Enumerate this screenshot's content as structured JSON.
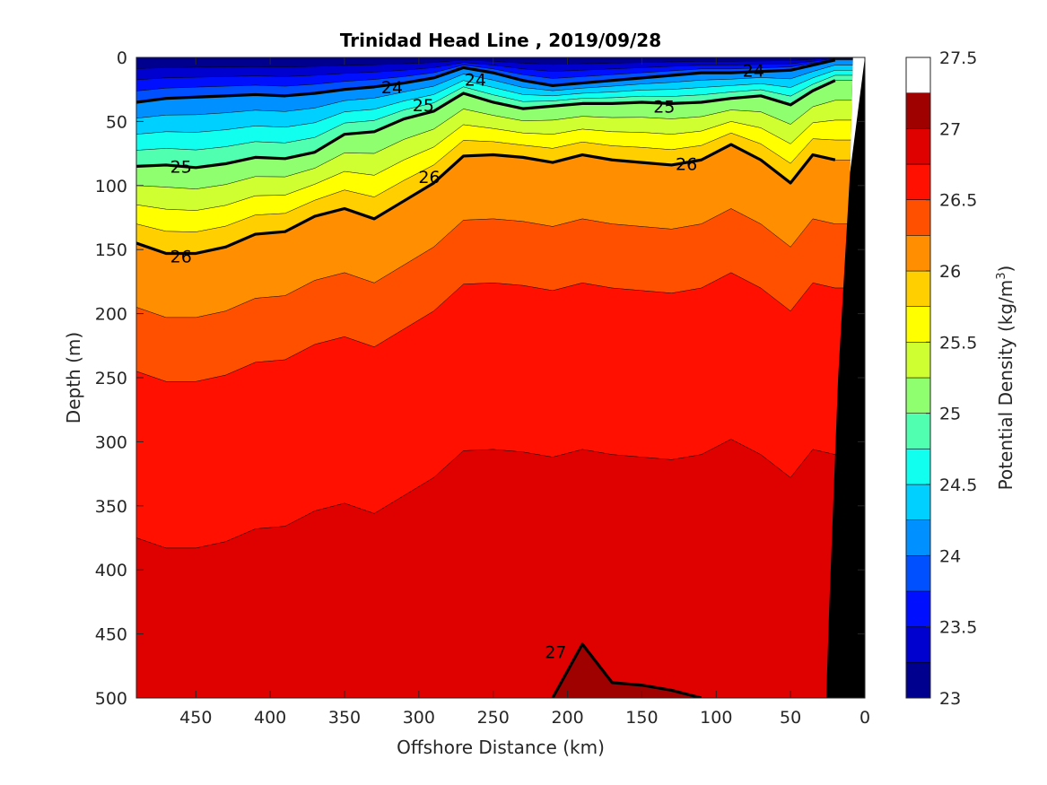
{
  "chart_data": {
    "type": "contour",
    "title": "Trinidad Head Line , 2019/09/28",
    "xlabel": "Offshore Distance (km)",
    "ylabel": "Depth (m)",
    "xlim": [
      490,
      0
    ],
    "ylim": [
      0,
      500
    ],
    "x_reversed": true,
    "y_reversed": true,
    "x_ticks": [
      450,
      400,
      350,
      300,
      250,
      200,
      150,
      100,
      50,
      0
    ],
    "y_ticks": [
      0,
      50,
      100,
      150,
      200,
      250,
      300,
      350,
      400,
      450,
      500
    ],
    "colorbar": {
      "label_prefix": "Potential Density (kg/m",
      "label_exp": "3",
      "label_suffix": ")",
      "range": [
        23,
        27.5
      ],
      "ticks": [
        23,
        23.5,
        24,
        24.5,
        25,
        25.5,
        26,
        26.5,
        27,
        27.5
      ],
      "levels": [
        23,
        23.25,
        23.5,
        23.75,
        24,
        24.25,
        24.5,
        24.75,
        25,
        25.25,
        25.5,
        25.75,
        26,
        26.25,
        26.5,
        26.75,
        27,
        27.25,
        27.5
      ],
      "colors": [
        "#00008f",
        "#0000cf",
        "#0010ff",
        "#0050ff",
        "#0090ff",
        "#00d0ff",
        "#10ffef",
        "#50ffaf",
        "#90ff6f",
        "#cfff30",
        "#ffff00",
        "#ffcf00",
        "#ff8f00",
        "#ff5000",
        "#ff1000",
        "#df0000",
        "#9f0000"
      ]
    },
    "x": [
      490,
      470,
      450,
      430,
      410,
      390,
      370,
      350,
      330,
      310,
      290,
      270,
      250,
      230,
      210,
      190,
      170,
      150,
      130,
      110,
      90,
      70,
      50,
      35,
      20
    ],
    "isolines": {
      "24": [
        35,
        32,
        31,
        30,
        29,
        30,
        28,
        25,
        23,
        20,
        16,
        8,
        12,
        18,
        22,
        20,
        18,
        16,
        14,
        12,
        12,
        11,
        10,
        6,
        2
      ],
      "25": [
        85,
        84,
        86,
        83,
        78,
        79,
        74,
        60,
        58,
        48,
        42,
        28,
        35,
        40,
        38,
        36,
        36,
        35,
        36,
        35,
        32,
        30,
        37,
        26,
        18
      ],
      "26": [
        145,
        153,
        153,
        148,
        138,
        136,
        124,
        118,
        126,
        112,
        98,
        77,
        76,
        78,
        82,
        76,
        80,
        82,
        84,
        80,
        68,
        80,
        98,
        76,
        80
      ],
      "27": [
        500,
        500,
        500,
        500,
        500,
        500,
        500,
        500,
        500,
        500,
        500,
        500,
        500,
        500,
        500,
        458,
        488,
        490,
        494,
        500,
        500,
        500,
        500,
        500,
        500
      ]
    },
    "contour_labels": [
      {
        "text": "24",
        "x": 262,
        "y": 17
      },
      {
        "text": "24",
        "x": 75,
        "y": 10
      },
      {
        "text": "24",
        "x": 318,
        "y": 23
      },
      {
        "text": "25",
        "x": 460,
        "y": 85
      },
      {
        "text": "25",
        "x": 297,
        "y": 37
      },
      {
        "text": "25",
        "x": 135,
        "y": 38
      },
      {
        "text": "26",
        "x": 460,
        "y": 155
      },
      {
        "text": "26",
        "x": 293,
        "y": 93
      },
      {
        "text": "26",
        "x": 120,
        "y": 83
      },
      {
        "text": "27",
        "x": 208,
        "y": 464
      }
    ],
    "bathymetry": [
      [
        8,
        0
      ],
      [
        20,
        0
      ],
      [
        0,
        0
      ],
      [
        0,
        500
      ],
      [
        26,
        500
      ],
      [
        24,
        430
      ],
      [
        18,
        250
      ],
      [
        10,
        90
      ]
    ]
  }
}
